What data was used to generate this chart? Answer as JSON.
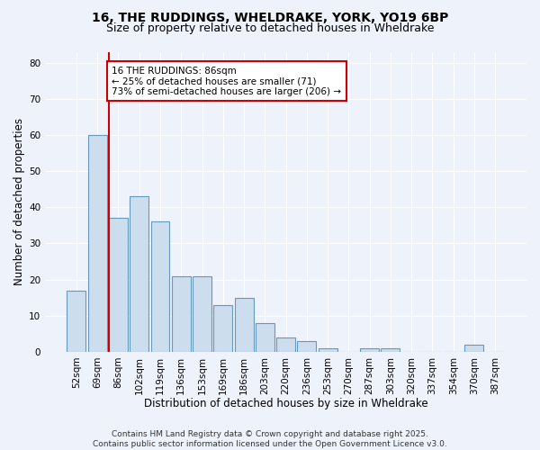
{
  "title1": "16, THE RUDDINGS, WHELDRAKE, YORK, YO19 6BP",
  "title2": "Size of property relative to detached houses in Wheldrake",
  "xlabel": "Distribution of detached houses by size in Wheldrake",
  "ylabel": "Number of detached properties",
  "categories": [
    "52sqm",
    "69sqm",
    "86sqm",
    "102sqm",
    "119sqm",
    "136sqm",
    "153sqm",
    "169sqm",
    "186sqm",
    "203sqm",
    "220sqm",
    "236sqm",
    "253sqm",
    "270sqm",
    "287sqm",
    "303sqm",
    "320sqm",
    "337sqm",
    "354sqm",
    "370sqm",
    "387sqm"
  ],
  "values": [
    17,
    60,
    37,
    43,
    36,
    21,
    21,
    13,
    15,
    8,
    4,
    3,
    1,
    0,
    1,
    1,
    0,
    0,
    0,
    2,
    0
  ],
  "bar_color": "#ccdded",
  "bar_edge_color": "#6699bb",
  "highlight_index": 2,
  "highlight_line_color": "#cc0000",
  "annotation_text": "16 THE RUDDINGS: 86sqm\n← 25% of detached houses are smaller (71)\n73% of semi-detached houses are larger (206) →",
  "annotation_box_color": "#ffffff",
  "annotation_box_edge_color": "#cc0000",
  "ylim": [
    0,
    83
  ],
  "yticks": [
    0,
    10,
    20,
    30,
    40,
    50,
    60,
    70,
    80
  ],
  "background_color": "#eef2fb",
  "plot_background_color": "#eef2fb",
  "grid_color": "#ffffff",
  "footer_text": "Contains HM Land Registry data © Crown copyright and database right 2025.\nContains public sector information licensed under the Open Government Licence v3.0.",
  "title1_fontsize": 10,
  "title2_fontsize": 9,
  "xlabel_fontsize": 8.5,
  "ylabel_fontsize": 8.5,
  "tick_fontsize": 7.5,
  "annotation_fontsize": 7.5,
  "footer_fontsize": 6.5
}
